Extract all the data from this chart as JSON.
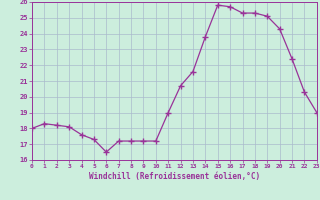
{
  "hours": [
    0,
    1,
    2,
    3,
    4,
    5,
    6,
    7,
    8,
    9,
    10,
    11,
    12,
    13,
    14,
    15,
    16,
    17,
    18,
    19,
    20,
    21,
    22,
    23
  ],
  "values": [
    18.0,
    18.3,
    18.2,
    18.1,
    17.6,
    17.3,
    16.5,
    17.2,
    17.2,
    17.2,
    17.2,
    19.0,
    20.7,
    21.6,
    23.8,
    25.8,
    25.7,
    25.3,
    25.3,
    25.1,
    24.3,
    22.4,
    20.3,
    19.0
  ],
  "line_color": "#993399",
  "marker_color": "#993399",
  "bg_color": "#cceedd",
  "grid_color": "#aabbcc",
  "axis_color": "#993399",
  "xlabel": "Windchill (Refroidissement éolien,°C)",
  "ylabel": "",
  "ylim": [
    16,
    26
  ],
  "xlim": [
    0,
    23
  ],
  "yticks": [
    16,
    17,
    18,
    19,
    20,
    21,
    22,
    23,
    24,
    25,
    26
  ],
  "xticks": [
    0,
    1,
    2,
    3,
    4,
    5,
    6,
    7,
    8,
    9,
    10,
    11,
    12,
    13,
    14,
    15,
    16,
    17,
    18,
    19,
    20,
    21,
    22,
    23
  ],
  "font_color": "#993399"
}
